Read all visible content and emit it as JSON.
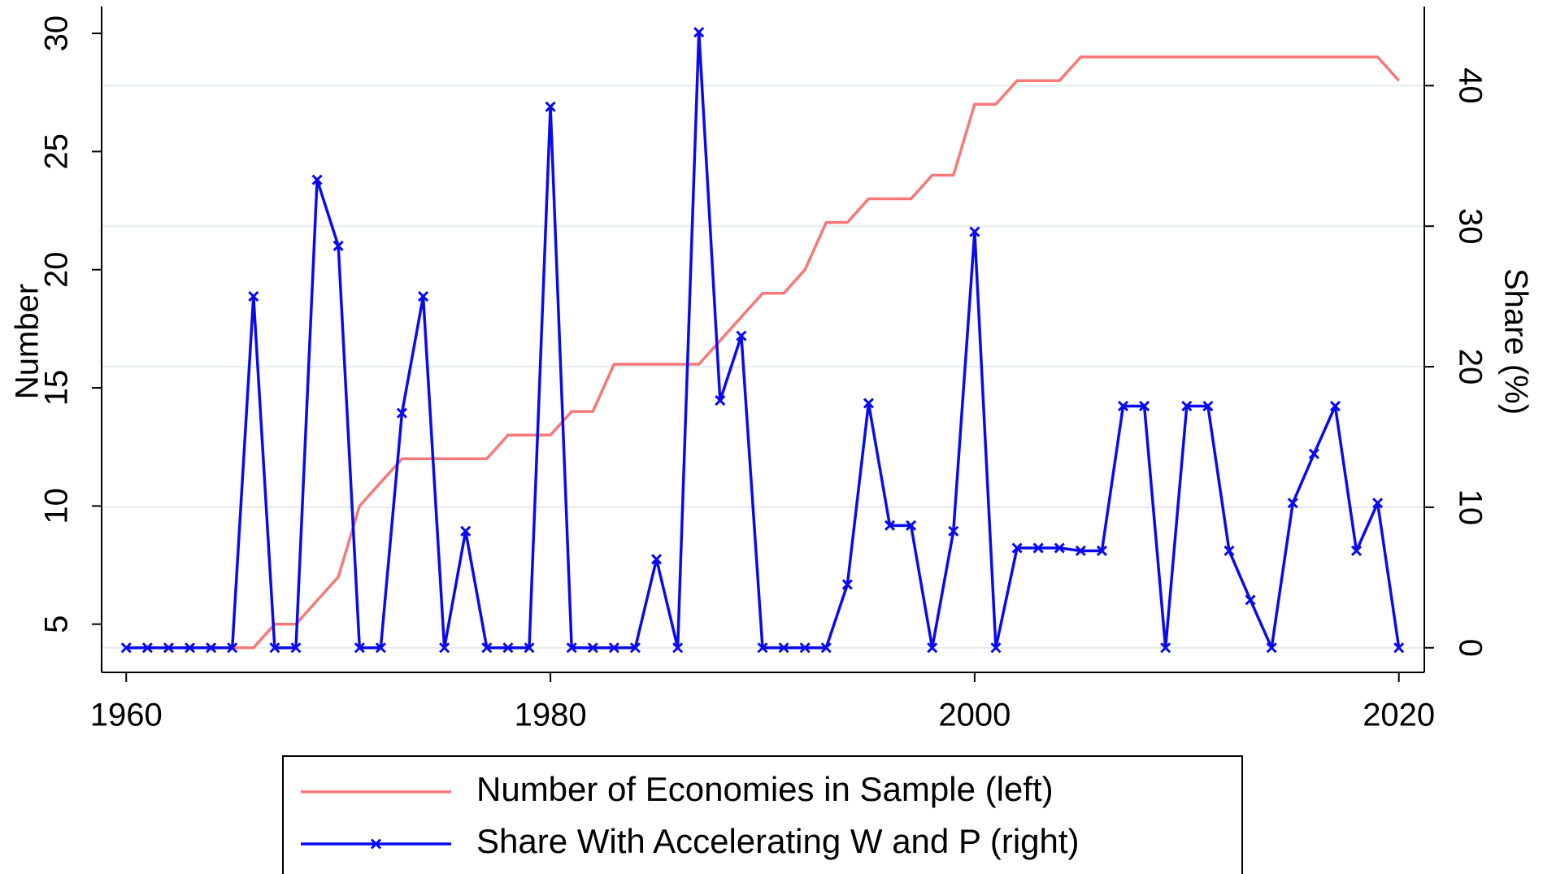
{
  "chart_data": {
    "type": "line",
    "x": [
      1960,
      1961,
      1962,
      1963,
      1964,
      1965,
      1966,
      1967,
      1968,
      1969,
      1970,
      1971,
      1972,
      1973,
      1974,
      1975,
      1976,
      1977,
      1978,
      1979,
      1980,
      1981,
      1982,
      1983,
      1984,
      1985,
      1986,
      1987,
      1988,
      1989,
      1990,
      1991,
      1992,
      1993,
      1994,
      1995,
      1996,
      1997,
      1998,
      1999,
      2000,
      2001,
      2002,
      2003,
      2004,
      2005,
      2006,
      2007,
      2008,
      2009,
      2010,
      2011,
      2012,
      2013,
      2014,
      2015,
      2016,
      2017,
      2018,
      2019,
      2020
    ],
    "series": [
      {
        "name": "Number of Economies in Sample (left)",
        "color": "#f87878",
        "axis": "y",
        "marker": "none",
        "values": [
          4,
          4,
          4,
          4,
          4,
          4,
          4,
          5,
          5,
          6,
          7,
          10,
          11,
          12,
          12,
          12,
          12,
          12,
          13,
          13,
          13,
          14,
          14,
          16,
          16,
          16,
          16,
          16,
          17,
          18,
          19,
          19,
          20,
          22,
          22,
          23,
          23,
          23,
          24,
          24,
          27,
          27,
          28,
          28,
          28,
          29,
          29,
          29,
          29,
          29,
          29,
          29,
          29,
          29,
          29,
          29,
          29,
          29,
          29,
          29,
          28
        ]
      },
      {
        "name": "Share With Accelerating W and P (right)",
        "color": "#0a0af0",
        "axis": "y2",
        "marker": "x",
        "values": [
          0,
          0,
          0,
          0,
          0,
          0,
          25,
          0,
          0,
          33.3,
          28.6,
          0,
          0,
          16.7,
          25,
          0,
          8.3,
          0,
          0,
          0,
          38.5,
          0,
          0,
          0,
          0,
          6.3,
          0,
          43.8,
          17.6,
          22.2,
          0,
          0,
          0,
          0,
          4.5,
          17.4,
          8.7,
          8.7,
          0,
          8.3,
          29.6,
          0,
          7.1,
          7.1,
          7.1,
          6.9,
          6.9,
          17.2,
          17.2,
          0,
          17.2,
          17.2,
          6.9,
          3.4,
          0,
          10.3,
          13.8,
          17.2,
          6.9,
          10.3,
          0
        ]
      }
    ],
    "y_label": "Number",
    "y2_label": "Share (%)",
    "xlim": [
      1958.84,
      2021.2
    ],
    "xticks": [
      1960,
      1980,
      2000,
      2020
    ],
    "ylim": [
      2.96,
      31
    ],
    "yticks": [
      5,
      10,
      15,
      20,
      25,
      30
    ],
    "y2lim": [
      -1.75,
      45.4
    ],
    "y2ticks": [
      0,
      10,
      20,
      30,
      40
    ],
    "grid": "y2",
    "legend": "bottom"
  }
}
